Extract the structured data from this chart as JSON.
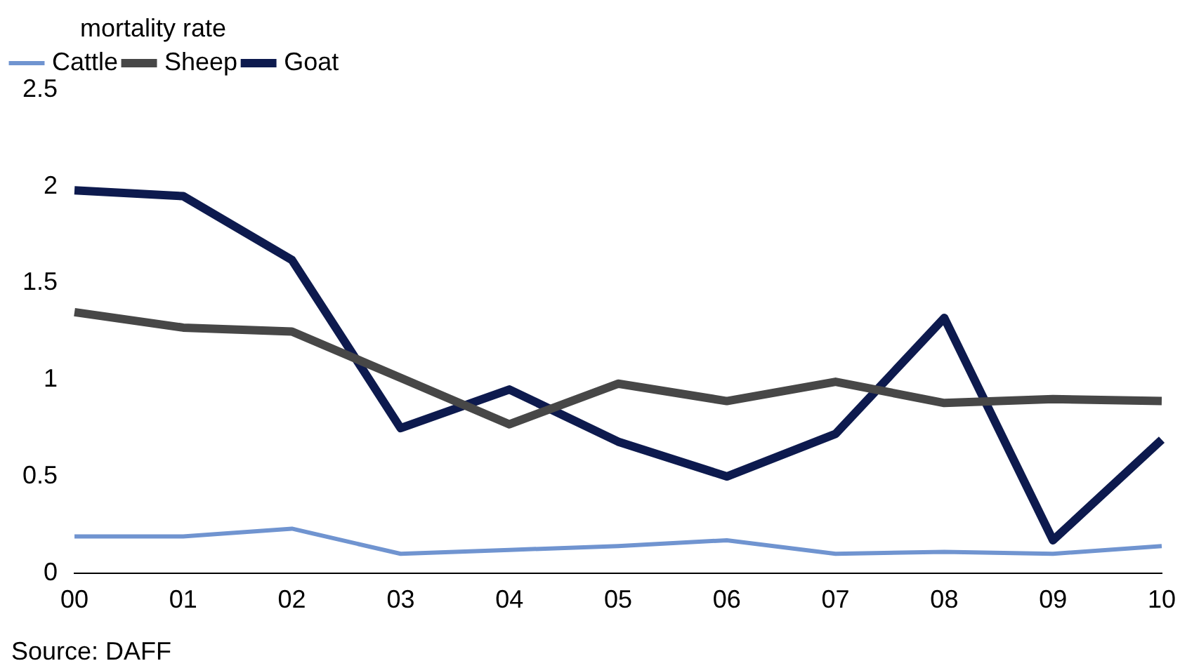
{
  "chart_data": {
    "type": "line",
    "ylabel": "mortality rate",
    "categories": [
      "00",
      "01",
      "02",
      "03",
      "04",
      "05",
      "06",
      "07",
      "08",
      "09",
      "10"
    ],
    "series": [
      {
        "name": "Cattle",
        "color": "#7094d0",
        "values": [
          0.19,
          0.19,
          0.23,
          0.1,
          0.12,
          0.14,
          0.17,
          0.1,
          0.11,
          0.1,
          0.14
        ]
      },
      {
        "name": "Sheep",
        "color": "#474747",
        "values": [
          1.35,
          1.27,
          1.25,
          1.01,
          0.77,
          0.98,
          0.89,
          0.99,
          0.88,
          0.9,
          0.89
        ]
      },
      {
        "name": "Goat",
        "color": "#0d1a4e",
        "values": [
          1.98,
          1.95,
          1.62,
          0.75,
          0.95,
          0.68,
          0.5,
          0.72,
          1.32,
          0.17,
          0.69
        ]
      }
    ],
    "ylim": [
      0,
      2.5
    ],
    "yticks": [
      0,
      0.5,
      1,
      1.5,
      2,
      2.5
    ],
    "grid": false,
    "legend": "top left",
    "marker": "none",
    "annotations": [
      "Source: DAFF"
    ]
  }
}
